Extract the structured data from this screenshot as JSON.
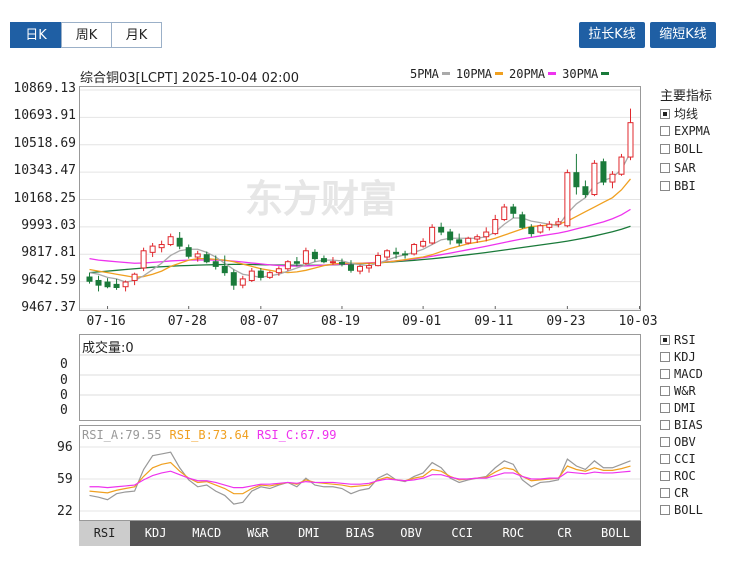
{
  "period_tabs": [
    {
      "label": "日K",
      "active": true
    },
    {
      "label": "周K",
      "active": false
    },
    {
      "label": "月K",
      "active": false
    }
  ],
  "buttons": {
    "stretch": "拉长K线",
    "shrink": "缩短K线"
  },
  "header": {
    "title": "综合铜03[LCPT] 2025-10-04 02:00"
  },
  "legend": [
    {
      "label": "5PMA",
      "color": "#aaaaaa"
    },
    {
      "label": "10PMA",
      "color": "#f0a020"
    },
    {
      "label": "20PMA",
      "color": "#ee33ee"
    },
    {
      "label": "30PMA",
      "color": "#1a7a3a"
    }
  ],
  "watermark": "东方财富",
  "main_indicators": {
    "title": "主要指标",
    "items": [
      {
        "label": "均线",
        "on": true
      },
      {
        "label": "EXPMA",
        "on": false
      },
      {
        "label": "BOLL",
        "on": false
      },
      {
        "label": "SAR",
        "on": false
      },
      {
        "label": "BBI",
        "on": false
      }
    ]
  },
  "volume_label": "成交量:0",
  "volume_ticks": [
    "0",
    "0",
    "0",
    "0"
  ],
  "rsi_legend": [
    {
      "label": "RSI_A:79.55",
      "color": "#999999"
    },
    {
      "label": "RSI_B:73.64",
      "color": "#f0a020"
    },
    {
      "label": "RSI_C:67.99",
      "color": "#ee33ee"
    }
  ],
  "sub_indicators": [
    {
      "label": "RSI",
      "on": true
    },
    {
      "label": "KDJ",
      "on": false
    },
    {
      "label": "MACD",
      "on": false
    },
    {
      "label": "W&R",
      "on": false
    },
    {
      "label": "DMI",
      "on": false
    },
    {
      "label": "BIAS",
      "on": false
    },
    {
      "label": "OBV",
      "on": false
    },
    {
      "label": "CCI",
      "on": false
    },
    {
      "label": "ROC",
      "on": false
    },
    {
      "label": "CR",
      "on": false
    },
    {
      "label": "BOLL",
      "on": false
    }
  ],
  "bottom_tabs": [
    {
      "label": "RSI",
      "active": true
    },
    {
      "label": "KDJ",
      "active": false
    },
    {
      "label": "MACD",
      "active": false
    },
    {
      "label": "W&R",
      "active": false
    },
    {
      "label": "DMI",
      "active": false
    },
    {
      "label": "BIAS",
      "active": false
    },
    {
      "label": "OBV",
      "active": false
    },
    {
      "label": "CCI",
      "active": false
    },
    {
      "label": "ROC",
      "active": false
    },
    {
      "label": "CR",
      "active": false
    },
    {
      "label": "BOLL",
      "active": false
    }
  ],
  "colors": {
    "up": "#e0282d",
    "down": "#1a7a3a",
    "accent": "#1f5fa4"
  },
  "chart_data": {
    "type": "candlestick",
    "y_ticks": [
      "10869.13",
      "10693.91",
      "10518.69",
      "10343.47",
      "10168.25",
      "9993.03",
      "9817.81",
      "9642.59",
      "9467.37"
    ],
    "ylim": [
      9467.37,
      10869.13
    ],
    "x_ticks": [
      {
        "label": "07-16",
        "index": 2
      },
      {
        "label": "07-28",
        "index": 11
      },
      {
        "label": "08-07",
        "index": 19
      },
      {
        "label": "08-19",
        "index": 28
      },
      {
        "label": "09-01",
        "index": 37
      },
      {
        "label": "09-11",
        "index": 45
      },
      {
        "label": "09-23",
        "index": 53
      },
      {
        "label": "10-03",
        "index": 61
      }
    ],
    "candles": [
      {
        "o": 9672,
        "h": 9700,
        "l": 9630,
        "c": 9645
      },
      {
        "o": 9650,
        "h": 9680,
        "l": 9580,
        "c": 9620
      },
      {
        "o": 9640,
        "h": 9665,
        "l": 9600,
        "c": 9610
      },
      {
        "o": 9625,
        "h": 9660,
        "l": 9590,
        "c": 9605
      },
      {
        "o": 9610,
        "h": 9650,
        "l": 9580,
        "c": 9640
      },
      {
        "o": 9650,
        "h": 9700,
        "l": 9620,
        "c": 9690
      },
      {
        "o": 9730,
        "h": 9860,
        "l": 9710,
        "c": 9840
      },
      {
        "o": 9830,
        "h": 9890,
        "l": 9800,
        "c": 9870
      },
      {
        "o": 9860,
        "h": 9905,
        "l": 9830,
        "c": 9880
      },
      {
        "o": 9880,
        "h": 9950,
        "l": 9870,
        "c": 9930
      },
      {
        "o": 9920,
        "h": 9960,
        "l": 9850,
        "c": 9870
      },
      {
        "o": 9860,
        "h": 9880,
        "l": 9790,
        "c": 9805
      },
      {
        "o": 9800,
        "h": 9840,
        "l": 9770,
        "c": 9820
      },
      {
        "o": 9815,
        "h": 9835,
        "l": 9760,
        "c": 9770
      },
      {
        "o": 9770,
        "h": 9810,
        "l": 9720,
        "c": 9740
      },
      {
        "o": 9740,
        "h": 9810,
        "l": 9680,
        "c": 9700
      },
      {
        "o": 9700,
        "h": 9720,
        "l": 9590,
        "c": 9620
      },
      {
        "o": 9620,
        "h": 9680,
        "l": 9600,
        "c": 9660
      },
      {
        "o": 9650,
        "h": 9730,
        "l": 9640,
        "c": 9710
      },
      {
        "o": 9710,
        "h": 9730,
        "l": 9650,
        "c": 9670
      },
      {
        "o": 9670,
        "h": 9710,
        "l": 9660,
        "c": 9700
      },
      {
        "o": 9700,
        "h": 9740,
        "l": 9680,
        "c": 9725
      },
      {
        "o": 9725,
        "h": 9780,
        "l": 9710,
        "c": 9770
      },
      {
        "o": 9770,
        "h": 9800,
        "l": 9740,
        "c": 9760
      },
      {
        "o": 9760,
        "h": 9860,
        "l": 9750,
        "c": 9840
      },
      {
        "o": 9830,
        "h": 9850,
        "l": 9770,
        "c": 9790
      },
      {
        "o": 9790,
        "h": 9810,
        "l": 9760,
        "c": 9770
      },
      {
        "o": 9770,
        "h": 9800,
        "l": 9750,
        "c": 9770
      },
      {
        "o": 9765,
        "h": 9790,
        "l": 9740,
        "c": 9755
      },
      {
        "o": 9750,
        "h": 9780,
        "l": 9700,
        "c": 9715
      },
      {
        "o": 9710,
        "h": 9750,
        "l": 9690,
        "c": 9740
      },
      {
        "o": 9730,
        "h": 9760,
        "l": 9700,
        "c": 9745
      },
      {
        "o": 9745,
        "h": 9830,
        "l": 9740,
        "c": 9810
      },
      {
        "o": 9800,
        "h": 9850,
        "l": 9780,
        "c": 9840
      },
      {
        "o": 9830,
        "h": 9860,
        "l": 9790,
        "c": 9820
      },
      {
        "o": 9820,
        "h": 9840,
        "l": 9790,
        "c": 9815
      },
      {
        "o": 9820,
        "h": 9890,
        "l": 9810,
        "c": 9880
      },
      {
        "o": 9870,
        "h": 9920,
        "l": 9860,
        "c": 9900
      },
      {
        "o": 9890,
        "h": 10010,
        "l": 9880,
        "c": 9990
      },
      {
        "o": 9990,
        "h": 10020,
        "l": 9940,
        "c": 9960
      },
      {
        "o": 9960,
        "h": 9980,
        "l": 9880,
        "c": 9910
      },
      {
        "o": 9910,
        "h": 9950,
        "l": 9870,
        "c": 9890
      },
      {
        "o": 9890,
        "h": 9930,
        "l": 9880,
        "c": 9920
      },
      {
        "o": 9915,
        "h": 9945,
        "l": 9890,
        "c": 9930
      },
      {
        "o": 9930,
        "h": 9990,
        "l": 9900,
        "c": 9960
      },
      {
        "o": 9950,
        "h": 10070,
        "l": 9940,
        "c": 10040
      },
      {
        "o": 10040,
        "h": 10140,
        "l": 10030,
        "c": 10120
      },
      {
        "o": 10120,
        "h": 10140,
        "l": 10050,
        "c": 10080
      },
      {
        "o": 10070,
        "h": 10090,
        "l": 9980,
        "c": 9990
      },
      {
        "o": 9990,
        "h": 10010,
        "l": 9930,
        "c": 9950
      },
      {
        "o": 9960,
        "h": 10010,
        "l": 9950,
        "c": 10000
      },
      {
        "o": 9990,
        "h": 10030,
        "l": 9970,
        "c": 10010
      },
      {
        "o": 10010,
        "h": 10050,
        "l": 9990,
        "c": 10025
      },
      {
        "o": 10000,
        "h": 10360,
        "l": 9990,
        "c": 10340
      },
      {
        "o": 10340,
        "h": 10460,
        "l": 10200,
        "c": 10250
      },
      {
        "o": 10250,
        "h": 10290,
        "l": 10180,
        "c": 10200
      },
      {
        "o": 10200,
        "h": 10420,
        "l": 10190,
        "c": 10400
      },
      {
        "o": 10410,
        "h": 10430,
        "l": 10260,
        "c": 10280
      },
      {
        "o": 10280,
        "h": 10350,
        "l": 10240,
        "c": 10330
      },
      {
        "o": 10330,
        "h": 10460,
        "l": 10320,
        "c": 10440
      },
      {
        "o": 10440,
        "h": 10750,
        "l": 10420,
        "c": 10660
      }
    ],
    "ma5": [
      9700,
      9690,
      9670,
      9660,
      9640,
      9650,
      9680,
      9720,
      9760,
      9810,
      9840,
      9850,
      9850,
      9830,
      9800,
      9760,
      9720,
      9690,
      9680,
      9670,
      9680,
      9690,
      9710,
      9730,
      9750,
      9770,
      9780,
      9780,
      9775,
      9760,
      9750,
      9745,
      9760,
      9780,
      9800,
      9815,
      9830,
      9850,
      9880,
      9910,
      9920,
      9920,
      9920,
      9920,
      9930,
      9960,
      10010,
      10050,
      10050,
      10030,
      10020,
      10010,
      10000,
      10080,
      10140,
      10180,
      10260,
      10290,
      10310,
      10360,
      10470
    ],
    "ma10": [
      9720,
      9710,
      9700,
      9690,
      9680,
      9670,
      9675,
      9690,
      9710,
      9740,
      9760,
      9780,
      9790,
      9790,
      9785,
      9780,
      9770,
      9755,
      9740,
      9725,
      9715,
      9705,
      9700,
      9705,
      9715,
      9730,
      9745,
      9755,
      9760,
      9760,
      9760,
      9760,
      9762,
      9768,
      9775,
      9783,
      9792,
      9800,
      9815,
      9835,
      9855,
      9870,
      9885,
      9895,
      9905,
      9920,
      9940,
      9960,
      9980,
      9995,
      10000,
      10005,
      10010,
      10030,
      10060,
      10090,
      10120,
      10150,
      10180,
      10230,
      10300
    ],
    "ma20": [
      9790,
      9780,
      9775,
      9770,
      9765,
      9760,
      9762,
      9766,
      9770,
      9775,
      9778,
      9780,
      9781,
      9781,
      9780,
      9778,
      9774,
      9768,
      9762,
      9756,
      9750,
      9746,
      9743,
      9742,
      9743,
      9745,
      9748,
      9751,
      9754,
      9757,
      9760,
      9763,
      9766,
      9770,
      9775,
      9781,
      9788,
      9796,
      9805,
      9815,
      9825,
      9836,
      9847,
      9858,
      9869,
      9881,
      9893,
      9905,
      9916,
      9926,
      9935,
      9944,
      9953,
      9965,
      9980,
      9995,
      10010,
      10025,
      10045,
      10070,
      10105
    ],
    "ma30": [
      9700,
      9705,
      9710,
      9715,
      9720,
      9725,
      9730,
      9735,
      9738,
      9741,
      9744,
      9746,
      9748,
      9750,
      9751,
      9752,
      9753,
      9753,
      9752,
      9751,
      9750,
      9749,
      9748,
      9747,
      9747,
      9747,
      9748,
      9750,
      9752,
      9754,
      9757,
      9760,
      9763,
      9767,
      9771,
      9775,
      9779,
      9784,
      9789,
      9795,
      9801,
      9808,
      9815,
      9822,
      9829,
      9837,
      9845,
      9853,
      9861,
      9869,
      9877,
      9885,
      9893,
      9902,
      9912,
      9923,
      9935,
      9948,
      9962,
      9978,
      9997
    ],
    "rsi_ticks": [
      "96",
      "59",
      "22"
    ],
    "rsi_a": [
      40,
      38,
      35,
      42,
      44,
      45,
      70,
      86,
      88,
      90,
      72,
      58,
      50,
      52,
      45,
      40,
      30,
      32,
      45,
      50,
      48,
      52,
      55,
      50,
      60,
      52,
      50,
      50,
      48,
      42,
      46,
      48,
      60,
      65,
      58,
      56,
      62,
      66,
      78,
      72,
      60,
      55,
      58,
      60,
      62,
      72,
      80,
      76,
      58,
      50,
      55,
      56,
      58,
      82,
      74,
      70,
      80,
      72,
      72,
      76,
      80
    ],
    "rsi_b": [
      45,
      44,
      43,
      46,
      48,
      50,
      62,
      72,
      76,
      78,
      68,
      60,
      55,
      56,
      52,
      48,
      42,
      42,
      48,
      52,
      51,
      53,
      55,
      53,
      58,
      55,
      54,
      53,
      52,
      50,
      51,
      52,
      58,
      61,
      58,
      57,
      60,
      62,
      70,
      68,
      62,
      58,
      59,
      60,
      61,
      67,
      72,
      70,
      62,
      57,
      58,
      59,
      60,
      74,
      70,
      68,
      72,
      69,
      69,
      71,
      74
    ],
    "rsi_c": [
      50,
      50,
      49,
      50,
      51,
      52,
      58,
      63,
      66,
      68,
      64,
      60,
      57,
      57,
      55,
      52,
      49,
      49,
      51,
      53,
      53,
      54,
      55,
      54,
      56,
      55,
      55,
      55,
      54,
      53,
      53,
      54,
      57,
      59,
      58,
      57,
      58,
      60,
      64,
      64,
      61,
      59,
      59,
      60,
      60,
      63,
      66,
      66,
      62,
      59,
      59,
      60,
      60,
      67,
      66,
      65,
      67,
      66,
      66,
      67,
      68
    ]
  }
}
